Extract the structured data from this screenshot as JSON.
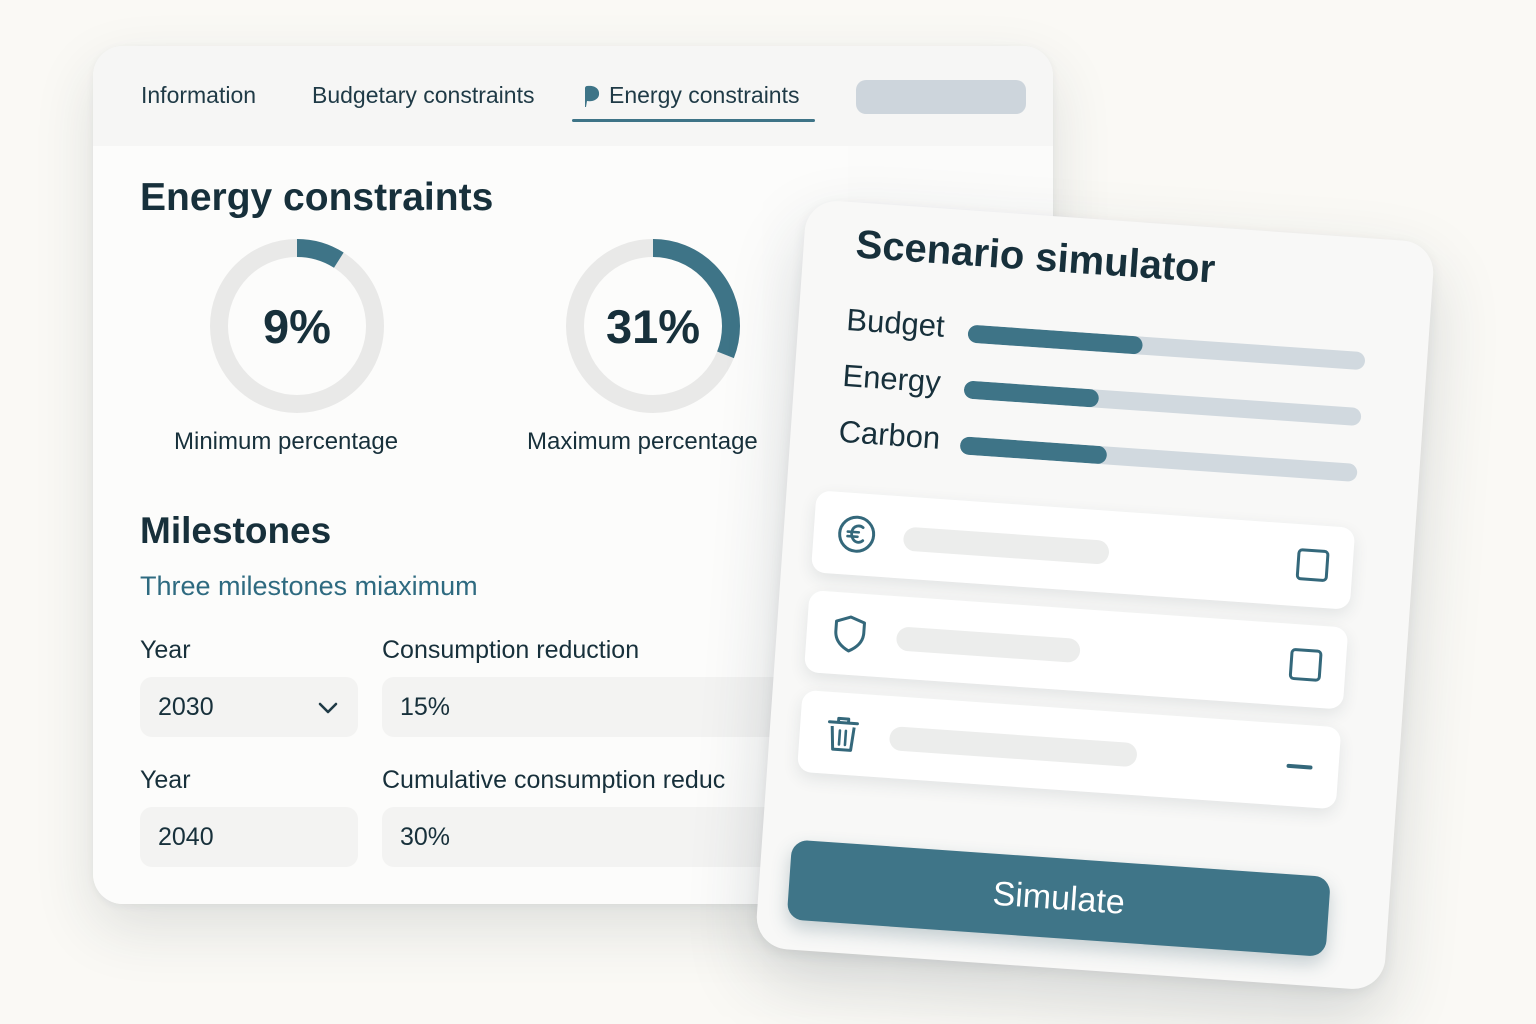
{
  "tabs": {
    "information": "Information",
    "budgetary": "Budgetary constraints",
    "energy": "Energy constraints",
    "energy_icon": "speech-bubble-icon"
  },
  "energy": {
    "title": "Energy constraints",
    "min": {
      "value": 9,
      "display": "9%",
      "label": "Minimum percentage"
    },
    "max": {
      "value": 31,
      "display": "31%",
      "label": "Maximum percentage"
    }
  },
  "milestones": {
    "title": "Milestones",
    "subtitle": "Three milestones miaximum",
    "row1": {
      "year_label": "Year",
      "year_value": "2030",
      "metric_label": "Consumption reduction",
      "metric_value": "15%"
    },
    "row2": {
      "year_label": "Year",
      "year_value": "2040",
      "metric_label": "Cumulative consumption reduc",
      "metric_value": "30%"
    }
  },
  "simulator": {
    "title": "Scenario simulator",
    "bars": [
      {
        "label": "Budget",
        "fraction": 0.44
      },
      {
        "label": "Energy",
        "fraction": 0.34
      },
      {
        "label": "Carbon",
        "fraction": 0.37
      }
    ],
    "options": [
      {
        "icon": "euro-icon",
        "control": "checkbox"
      },
      {
        "icon": "shield-icon",
        "control": "checkbox"
      },
      {
        "icon": "trash-icon",
        "control": "dash"
      }
    ],
    "button": "Simulate"
  },
  "colors": {
    "accent": "#3e7487",
    "track": "#e8e8e7",
    "bar_track": "#d1d9df"
  }
}
